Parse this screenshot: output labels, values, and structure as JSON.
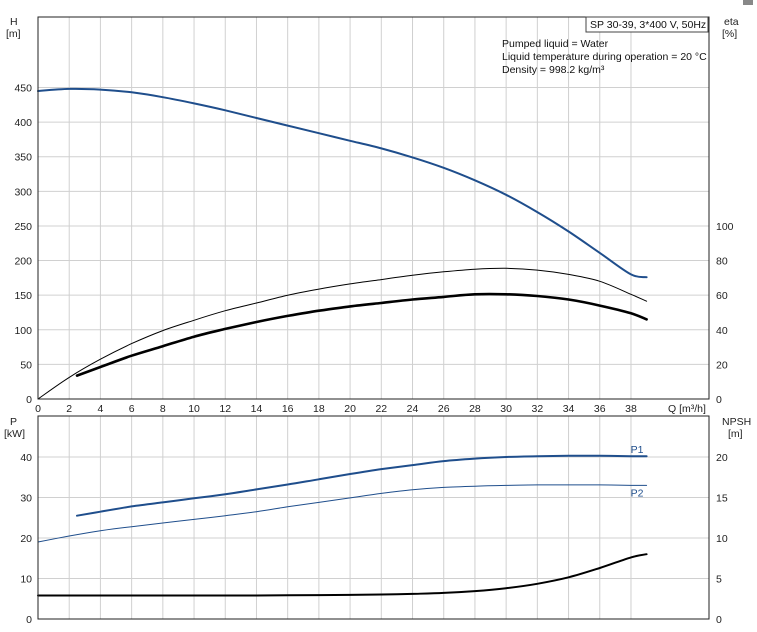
{
  "chart_data": [
    {
      "type": "line",
      "ylabel": [
        "H",
        "[m]"
      ],
      "ylabel_right": [
        "eta",
        "[%]"
      ],
      "xlabel": "Q [m³/h]",
      "xlim": [
        0,
        43
      ],
      "xticks": [
        0,
        2,
        4,
        6,
        8,
        10,
        12,
        14,
        16,
        18,
        20,
        22,
        24,
        26,
        28,
        30,
        32,
        34,
        36,
        38
      ],
      "ylim": [
        0,
        500
      ],
      "yticks": [
        0,
        50,
        100,
        150,
        200,
        250,
        300,
        350,
        400,
        450
      ],
      "ylim_right": [
        0,
        200
      ],
      "yticks_right": [
        0,
        20,
        40,
        60,
        80,
        100
      ],
      "grid": true,
      "info_box": {
        "title": "SP 30-39, 3*400 V, 50Hz",
        "lines": [
          "Pumped liquid = Water",
          "Liquid temperature during operation = 20 °C",
          "Density = 998.2 kg/m³"
        ]
      },
      "series": [
        {
          "axis": "left",
          "color": "#1f4e8c",
          "width": 2,
          "x": [
            0,
            2,
            4,
            6,
            8,
            10,
            12,
            14,
            16,
            18,
            20,
            22,
            24,
            26,
            28,
            30,
            32,
            34,
            36,
            38,
            39
          ],
          "y": [
            445,
            448,
            447,
            443,
            436,
            427,
            417,
            406,
            395,
            384,
            373,
            362,
            349,
            334,
            316,
            295,
            270,
            242,
            211,
            180,
            176
          ]
        },
        {
          "axis": "right",
          "color": "#000000",
          "width": 1,
          "x": [
            0,
            2,
            4,
            6,
            8,
            10,
            12,
            14,
            16,
            18,
            20,
            22,
            24,
            26,
            28,
            30,
            32,
            34,
            36,
            38,
            39
          ],
          "y": [
            0,
            12.5,
            23,
            32,
            39.5,
            45.5,
            51,
            55.5,
            60,
            63.5,
            66.5,
            69,
            71.5,
            73.5,
            75,
            75.5,
            74.5,
            72,
            68,
            60.5,
            56.5
          ]
        },
        {
          "axis": "right",
          "color": "#000000",
          "width": 2.6,
          "x": [
            2.5,
            4,
            6,
            8,
            10,
            12,
            14,
            16,
            18,
            20,
            22,
            24,
            26,
            28,
            30,
            32,
            34,
            36,
            38,
            39
          ],
          "y": [
            13.5,
            18.5,
            25,
            30.5,
            36,
            40.5,
            44.5,
            48,
            51,
            53.5,
            55.5,
            57.5,
            59,
            60.5,
            60.5,
            59.5,
            57.5,
            54,
            49.5,
            46
          ]
        }
      ]
    },
    {
      "type": "line",
      "ylabel": [
        "P",
        "[kW]"
      ],
      "ylabel_right": [
        "NPSH",
        "[m]"
      ],
      "xlim": [
        0,
        43
      ],
      "ylim": [
        0,
        50
      ],
      "yticks": [
        0,
        10,
        20,
        30,
        40
      ],
      "ylim_right": [
        0,
        25
      ],
      "yticks_right": [
        0,
        5,
        10,
        15,
        20
      ],
      "grid": true,
      "series": [
        {
          "name": "P1",
          "axis": "left",
          "color": "#1f4e8c",
          "width": 2,
          "x": [
            2.5,
            4,
            6,
            8,
            10,
            12,
            14,
            16,
            18,
            20,
            22,
            24,
            26,
            28,
            30,
            32,
            34,
            36,
            38,
            39
          ],
          "y": [
            25.5,
            26.5,
            27.8,
            28.8,
            29.8,
            30.8,
            32,
            33.2,
            34.5,
            35.8,
            37,
            38,
            39,
            39.6,
            40,
            40.2,
            40.3,
            40.3,
            40.2,
            40.2
          ]
        },
        {
          "name": "P2",
          "axis": "left",
          "color": "#1f4e8c",
          "width": 1,
          "x": [
            0,
            2,
            4,
            6,
            8,
            10,
            12,
            14,
            16,
            18,
            20,
            22,
            24,
            26,
            28,
            30,
            32,
            34,
            36,
            38,
            39
          ],
          "y": [
            19,
            20.5,
            21.8,
            22.8,
            23.7,
            24.6,
            25.5,
            26.5,
            27.7,
            28.8,
            29.9,
            31,
            31.9,
            32.5,
            32.8,
            33,
            33.1,
            33.1,
            33.1,
            33,
            33
          ]
        },
        {
          "axis": "right",
          "color": "#000000",
          "width": 2,
          "x": [
            0,
            2,
            4,
            6,
            8,
            10,
            12,
            14,
            16,
            18,
            20,
            22,
            24,
            26,
            28,
            30,
            32,
            34,
            36,
            38,
            39
          ],
          "y": [
            2.9,
            2.9,
            2.9,
            2.9,
            2.9,
            2.9,
            2.9,
            2.9,
            2.92,
            2.95,
            2.98,
            3.02,
            3.1,
            3.22,
            3.45,
            3.8,
            4.35,
            5.15,
            6.3,
            7.6,
            8
          ]
        }
      ]
    }
  ]
}
